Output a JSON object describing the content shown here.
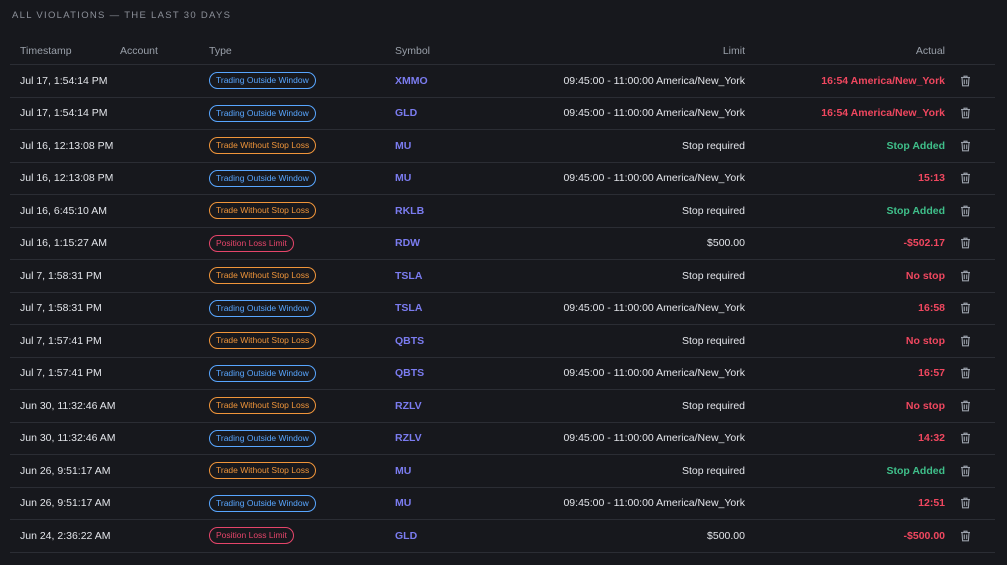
{
  "section_title": "ALL VIOLATIONS — THE LAST 30 DAYS",
  "columns": {
    "timestamp": "Timestamp",
    "account": "Account",
    "type": "Type",
    "symbol": "Symbol",
    "limit": "Limit",
    "actual": "Actual"
  },
  "colors": {
    "trading_outside_window": "#58a6ff",
    "trade_without_stop_loss": "#f0953a",
    "position_loss_limit": "#e5456a",
    "symbol": "#7b7cf0",
    "actual_red": "#f0475f",
    "actual_green": "#3fbf8a"
  },
  "rows": [
    {
      "timestamp": "Jul 17, 1:54:14 PM",
      "account": "",
      "type": "Trading Outside Window",
      "type_key": "trading_outside_window",
      "symbol": "XMMO",
      "limit": "09:45:00 - 11:00:00 America/New_York",
      "actual": "16:54 America/New_York",
      "actual_status": "red"
    },
    {
      "timestamp": "Jul 17, 1:54:14 PM",
      "account": "",
      "type": "Trading Outside Window",
      "type_key": "trading_outside_window",
      "symbol": "GLD",
      "limit": "09:45:00 - 11:00:00 America/New_York",
      "actual": "16:54 America/New_York",
      "actual_status": "red"
    },
    {
      "timestamp": "Jul 16, 12:13:08 PM",
      "account": "",
      "type": "Trade Without Stop Loss",
      "type_key": "trade_without_stop_loss",
      "symbol": "MU",
      "limit": "Stop required",
      "actual": "Stop Added",
      "actual_status": "green"
    },
    {
      "timestamp": "Jul 16, 12:13:08 PM",
      "account": "",
      "type": "Trading Outside Window",
      "type_key": "trading_outside_window",
      "symbol": "MU",
      "limit": "09:45:00 - 11:00:00 America/New_York",
      "actual": "15:13",
      "actual_status": "red"
    },
    {
      "timestamp": "Jul 16, 6:45:10 AM",
      "account": "",
      "type": "Trade Without Stop Loss",
      "type_key": "trade_without_stop_loss",
      "symbol": "RKLB",
      "limit": "Stop required",
      "actual": "Stop Added",
      "actual_status": "green"
    },
    {
      "timestamp": "Jul 16, 1:15:27 AM",
      "account": "",
      "type": "Position Loss Limit",
      "type_key": "position_loss_limit",
      "symbol": "RDW",
      "limit": "$500.00",
      "actual": "-$502.17",
      "actual_status": "red"
    },
    {
      "timestamp": "Jul 7, 1:58:31 PM",
      "account": "",
      "type": "Trade Without Stop Loss",
      "type_key": "trade_without_stop_loss",
      "symbol": "TSLA",
      "limit": "Stop required",
      "actual": "No stop",
      "actual_status": "red"
    },
    {
      "timestamp": "Jul 7, 1:58:31 PM",
      "account": "",
      "type": "Trading Outside Window",
      "type_key": "trading_outside_window",
      "symbol": "TSLA",
      "limit": "09:45:00 - 11:00:00 America/New_York",
      "actual": "16:58",
      "actual_status": "red"
    },
    {
      "timestamp": "Jul 7, 1:57:41 PM",
      "account": "",
      "type": "Trade Without Stop Loss",
      "type_key": "trade_without_stop_loss",
      "symbol": "QBTS",
      "limit": "Stop required",
      "actual": "No stop",
      "actual_status": "red"
    },
    {
      "timestamp": "Jul 7, 1:57:41 PM",
      "account": "",
      "type": "Trading Outside Window",
      "type_key": "trading_outside_window",
      "symbol": "QBTS",
      "limit": "09:45:00 - 11:00:00 America/New_York",
      "actual": "16:57",
      "actual_status": "red"
    },
    {
      "timestamp": "Jun 30, 11:32:46 AM",
      "account": "",
      "type": "Trade Without Stop Loss",
      "type_key": "trade_without_stop_loss",
      "symbol": "RZLV",
      "limit": "Stop required",
      "actual": "No stop",
      "actual_status": "red"
    },
    {
      "timestamp": "Jun 30, 11:32:46 AM",
      "account": "",
      "type": "Trading Outside Window",
      "type_key": "trading_outside_window",
      "symbol": "RZLV",
      "limit": "09:45:00 - 11:00:00 America/New_York",
      "actual": "14:32",
      "actual_status": "red"
    },
    {
      "timestamp": "Jun 26, 9:51:17 AM",
      "account": "",
      "type": "Trade Without Stop Loss",
      "type_key": "trade_without_stop_loss",
      "symbol": "MU",
      "limit": "Stop required",
      "actual": "Stop Added",
      "actual_status": "green"
    },
    {
      "timestamp": "Jun 26, 9:51:17 AM",
      "account": "",
      "type": "Trading Outside Window",
      "type_key": "trading_outside_window",
      "symbol": "MU",
      "limit": "09:45:00 - 11:00:00 America/New_York",
      "actual": "12:51",
      "actual_status": "red"
    },
    {
      "timestamp": "Jun 24, 2:36:22 AM",
      "account": "",
      "type": "Position Loss Limit",
      "type_key": "position_loss_limit",
      "symbol": "GLD",
      "limit": "$500.00",
      "actual": "-$500.00",
      "actual_status": "red"
    }
  ],
  "icons": {
    "delete": "trash-icon"
  }
}
